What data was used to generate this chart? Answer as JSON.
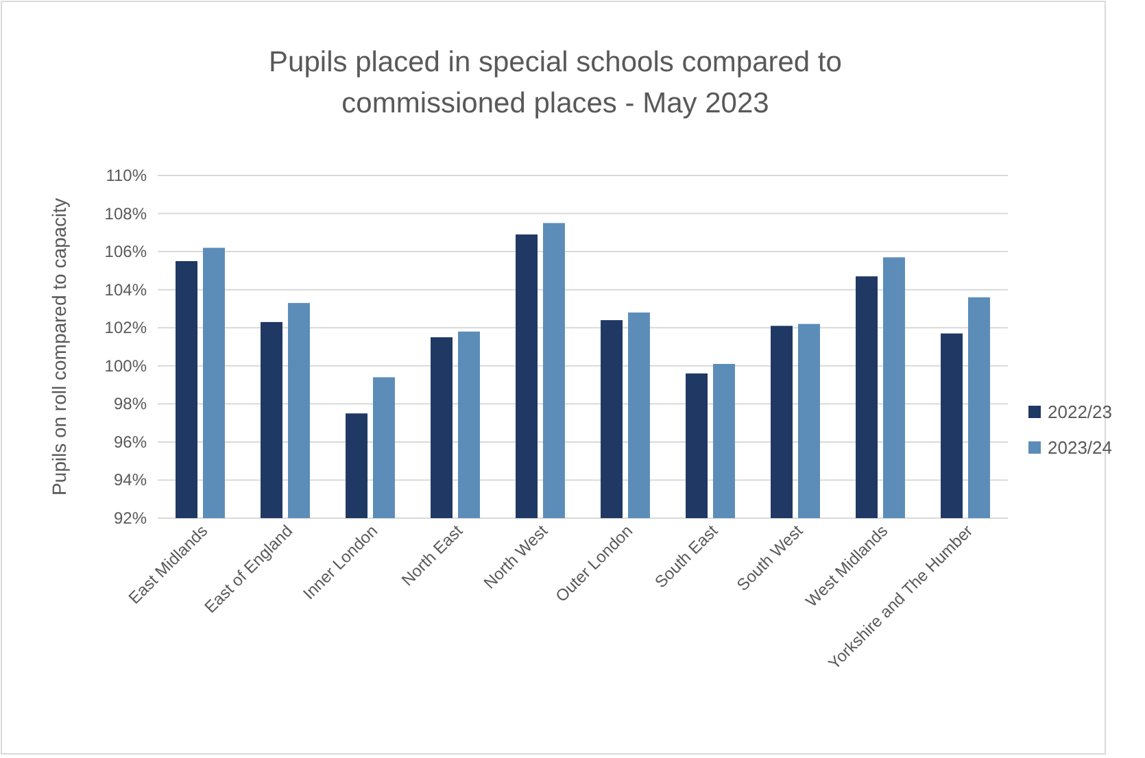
{
  "chart_data": {
    "type": "bar",
    "title": "Pupils placed in special schools compared to commissioned places - May 2023",
    "ylabel": "Pupils on roll compared to capacity",
    "categories": [
      "East Midlands",
      "East of England",
      "Inner London",
      "North East",
      "North West",
      "Outer London",
      "South East",
      "South West",
      "West Midlands",
      "Yorkshire and The Humber"
    ],
    "series": [
      {
        "name": "2022/23",
        "color": "#1f3864",
        "values": [
          105.5,
          102.3,
          97.5,
          101.5,
          106.9,
          102.4,
          99.6,
          102.1,
          104.7,
          101.7
        ]
      },
      {
        "name": "2023/24",
        "color": "#5b8db8",
        "values": [
          106.2,
          103.3,
          99.4,
          101.8,
          107.5,
          102.8,
          100.1,
          102.2,
          105.7,
          103.6
        ]
      }
    ],
    "ylim": [
      92,
      110
    ],
    "yticks": [
      {
        "value": 92,
        "label": "92%"
      },
      {
        "value": 94,
        "label": "94%"
      },
      {
        "value": 96,
        "label": "96%"
      },
      {
        "value": 98,
        "label": "98%"
      },
      {
        "value": 100,
        "label": "100%"
      },
      {
        "value": 102,
        "label": "102%"
      },
      {
        "value": 104,
        "label": "104%"
      },
      {
        "value": 106,
        "label": "106%"
      },
      {
        "value": 108,
        "label": "108%"
      },
      {
        "value": 110,
        "label": "110%"
      }
    ],
    "grid": "y",
    "legend": "right"
  }
}
